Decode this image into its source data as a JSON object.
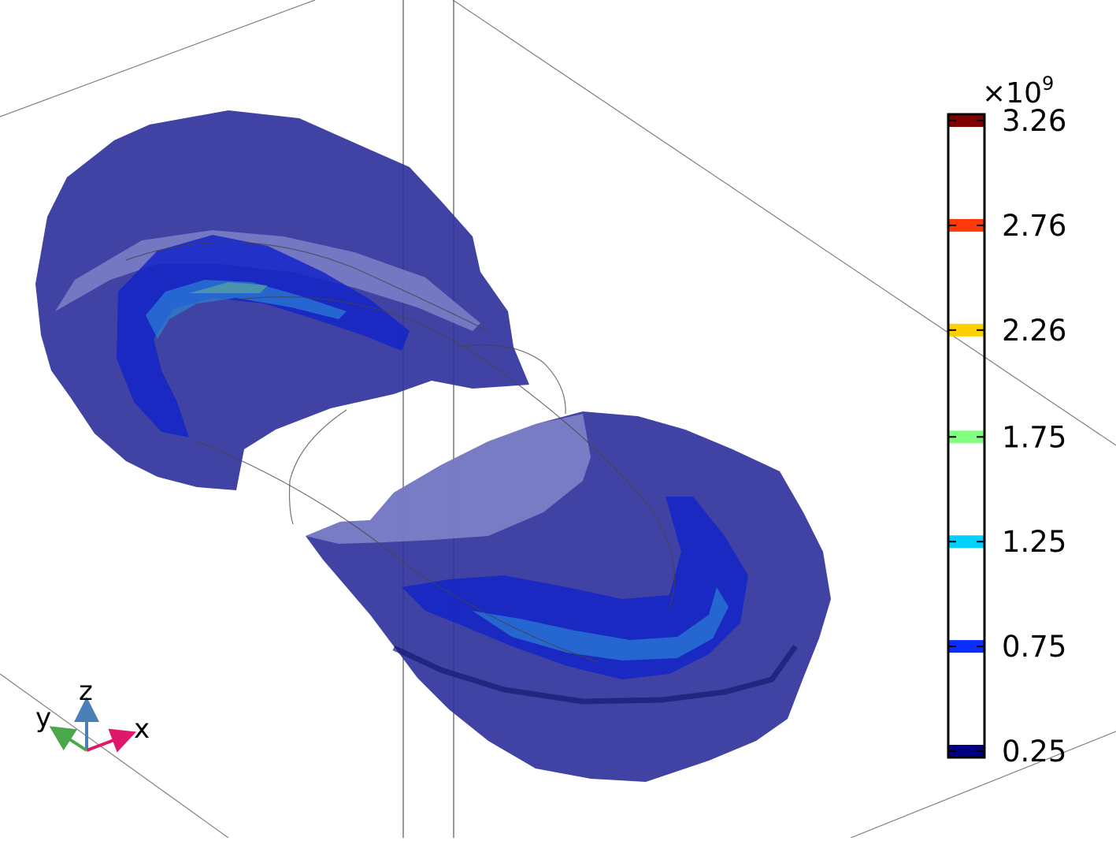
{
  "chart_data": {
    "type": "3d-isosurface",
    "title": "",
    "colorbar": {
      "multiplier": "×10",
      "exponent": "9",
      "levels": [
        {
          "value": 3.26,
          "label": "3.26",
          "color": "#7f0000"
        },
        {
          "value": 2.76,
          "label": "2.76",
          "color": "#ff3a08"
        },
        {
          "value": 2.26,
          "label": "2.26",
          "color": "#ffd000"
        },
        {
          "value": 1.75,
          "label": "1.75",
          "color": "#80ff80"
        },
        {
          "value": 1.25,
          "label": "1.25",
          "color": "#00d2ff"
        },
        {
          "value": 0.75,
          "label": "0.75",
          "color": "#0a2dff"
        },
        {
          "value": 0.25,
          "label": "0.25",
          "color": "#000080"
        }
      ],
      "range": [
        0.25,
        3.26
      ]
    },
    "axes_triad": {
      "x": "x",
      "y": "y",
      "z": "z"
    },
    "colors": {
      "outer_isosurface": "#2b2f9a",
      "inner_isosurface": "#1424c8",
      "x_axis": "#e0186c",
      "y_axis": "#4aa84a",
      "z_axis": "#4a7fb6"
    }
  }
}
